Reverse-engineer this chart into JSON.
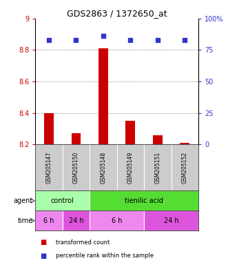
{
  "title": "GDS2863 / 1372650_at",
  "samples": [
    "GSM205147",
    "GSM205150",
    "GSM205148",
    "GSM205149",
    "GSM205151",
    "GSM205152"
  ],
  "bar_values": [
    8.4,
    8.27,
    8.81,
    8.35,
    8.26,
    8.21
  ],
  "bar_bottom": 8.2,
  "percentile_values": [
    83,
    83,
    86,
    83,
    83,
    83
  ],
  "ylim_left": [
    8.2,
    9.0
  ],
  "ylim_right": [
    0,
    100
  ],
  "yticks_left": [
    8.2,
    8.4,
    8.6,
    8.8,
    9.0
  ],
  "ytick_left_labels": [
    "8.2",
    "8.4",
    "8.6",
    "8.8",
    "9"
  ],
  "yticks_right": [
    0,
    25,
    50,
    75,
    100
  ],
  "ytick_right_labels": [
    "0",
    "25",
    "50",
    "75",
    "100%"
  ],
  "bar_color": "#cc0000",
  "dot_color": "#3333cc",
  "agent_groups": [
    {
      "label": "control",
      "start": 0,
      "end": 2,
      "color": "#aaffaa"
    },
    {
      "label": "tienilic acid",
      "start": 2,
      "end": 6,
      "color": "#55dd33"
    }
  ],
  "time_groups": [
    {
      "label": "6 h",
      "start": 0,
      "end": 1,
      "color": "#ee88ee"
    },
    {
      "label": "24 h",
      "start": 1,
      "end": 2,
      "color": "#dd55dd"
    },
    {
      "label": "6 h",
      "start": 2,
      "end": 4,
      "color": "#ee88ee"
    },
    {
      "label": "24 h",
      "start": 4,
      "end": 6,
      "color": "#dd55dd"
    }
  ],
  "agent_label": "agent",
  "time_label": "time",
  "legend_bar_label": "transformed count",
  "legend_dot_label": "percentile rank within the sample",
  "grid_dotted_at": [
    8.4,
    8.6,
    8.8
  ],
  "label_area_color": "#cccccc",
  "bar_width": 0.35
}
